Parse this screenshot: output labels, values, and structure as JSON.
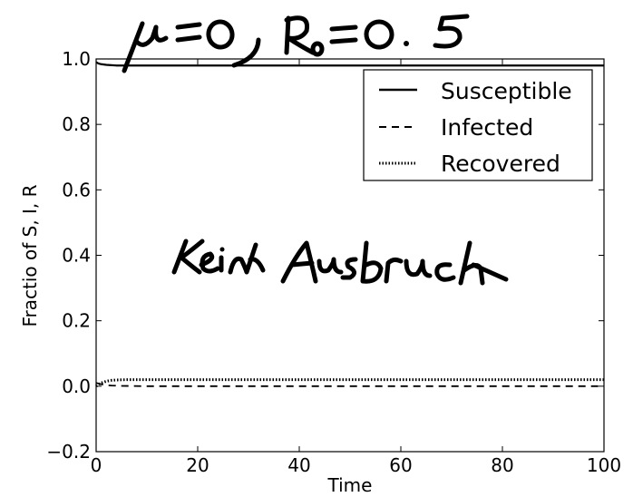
{
  "chart_data": {
    "type": "line",
    "xlabel": "Time",
    "ylabel": "Fractio of S, I, R",
    "xlim": [
      0,
      100
    ],
    "ylim": [
      -0.2,
      1.0
    ],
    "xticks": [
      0,
      20,
      40,
      60,
      80,
      100
    ],
    "yticks": [
      -0.2,
      0.0,
      0.2,
      0.4,
      0.6,
      0.8,
      1.0
    ],
    "ytick_labels": [
      "−0.2",
      "0.0",
      "0.2",
      "0.4",
      "0.6",
      "0.8",
      "1.0"
    ],
    "grid": false,
    "legend_position": "top-right",
    "series": [
      {
        "name": "Susceptible",
        "style": "solid",
        "color": "#000000",
        "x": [
          0,
          0.5,
          1,
          2,
          3,
          4,
          6,
          10,
          20,
          40,
          60,
          80,
          100
        ],
        "y": [
          0.99,
          0.986,
          0.984,
          0.982,
          0.981,
          0.98,
          0.98,
          0.98,
          0.98,
          0.98,
          0.98,
          0.98,
          0.98
        ]
      },
      {
        "name": "Infected",
        "style": "dashed",
        "color": "#000000",
        "x": [
          0,
          1,
          2,
          3,
          5,
          10,
          20,
          40,
          60,
          80,
          100
        ],
        "y": [
          0.01,
          0.006,
          0.003,
          0.002,
          0.001,
          0.0,
          0.0,
          0.0,
          0.0,
          0.0,
          0.0
        ]
      },
      {
        "name": "Recovered",
        "style": "dotted",
        "color": "#000000",
        "x": [
          0,
          0.5,
          1,
          2,
          3,
          4,
          6,
          10,
          20,
          40,
          60,
          80,
          100
        ],
        "y": [
          0.0,
          0.006,
          0.01,
          0.015,
          0.018,
          0.019,
          0.02,
          0.02,
          0.02,
          0.02,
          0.02,
          0.02,
          0.02
        ]
      }
    ],
    "handwritten_annotations": [
      "μ = 0, R₀ = 0.5",
      "Kein Ausbruch"
    ]
  }
}
